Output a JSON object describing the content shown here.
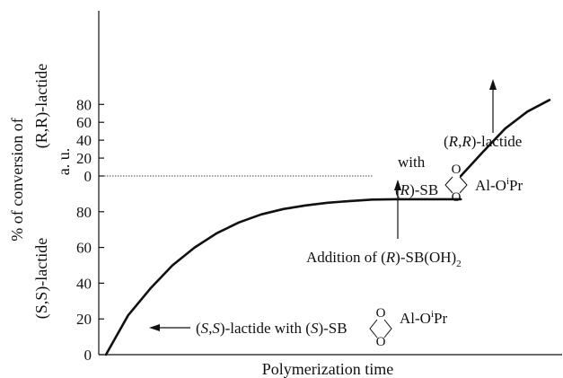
{
  "chart_data": {
    "type": "line",
    "title": "",
    "xlabel": "Polymerization time",
    "ylabel": {
      "upper": [
        "% of conversion of",
        "(R,R)-lactide",
        "a. u."
      ],
      "lower": [
        "(S,S)-lactide"
      ]
    },
    "x_range": [
      0,
      100
    ],
    "upper_axis": {
      "ticks": [
        "0",
        "20",
        "40",
        "60",
        "80"
      ],
      "range": [
        0,
        87
      ]
    },
    "lower_axis": {
      "ticks": [
        "0",
        "20",
        "40",
        "60",
        "80"
      ],
      "range": [
        0,
        87
      ]
    },
    "series": [
      {
        "panel": "lower",
        "x": [
          0,
          5,
          10,
          15,
          20,
          25,
          30,
          35,
          40,
          45,
          50,
          55,
          60,
          65,
          70,
          75,
          80
        ],
        "y": [
          0,
          22,
          37,
          50,
          60,
          68,
          74,
          78.5,
          81.5,
          83.5,
          85,
          86,
          86.8,
          87,
          87,
          87,
          87
        ]
      },
      {
        "panel": "upper",
        "x": [
          80,
          85,
          90,
          95,
          100
        ],
        "y": [
          0,
          27,
          53,
          72,
          85
        ]
      }
    ],
    "grid": false,
    "legend": "none",
    "annotations": {
      "lower_label_pre": "(",
      "lower_label_s1": "S",
      "lower_label_comma": ",",
      "lower_label_s2": "S",
      "lower_label_mid": ")-lactide with (",
      "lower_label_s3": "S",
      "lower_label_post": ")-SB",
      "upper_label_line1_pre": "(",
      "upper_label_r1": "R",
      "upper_label_comma": ",",
      "upper_label_r2": "R",
      "upper_label_line1_post": ")-lactide",
      "upper_label_line2": "with",
      "upper_label_line3_pre": "(",
      "upper_label_r3": "R",
      "upper_label_line3_post": ")-SB",
      "addition_pre": "Addition of (",
      "addition_r": "R",
      "addition_post": ")-SB(OH)",
      "addition_sub": "2",
      "ring_atom": "O",
      "al_text": "Al-O",
      "sup_i": "i",
      "pr_text": "Pr"
    }
  }
}
